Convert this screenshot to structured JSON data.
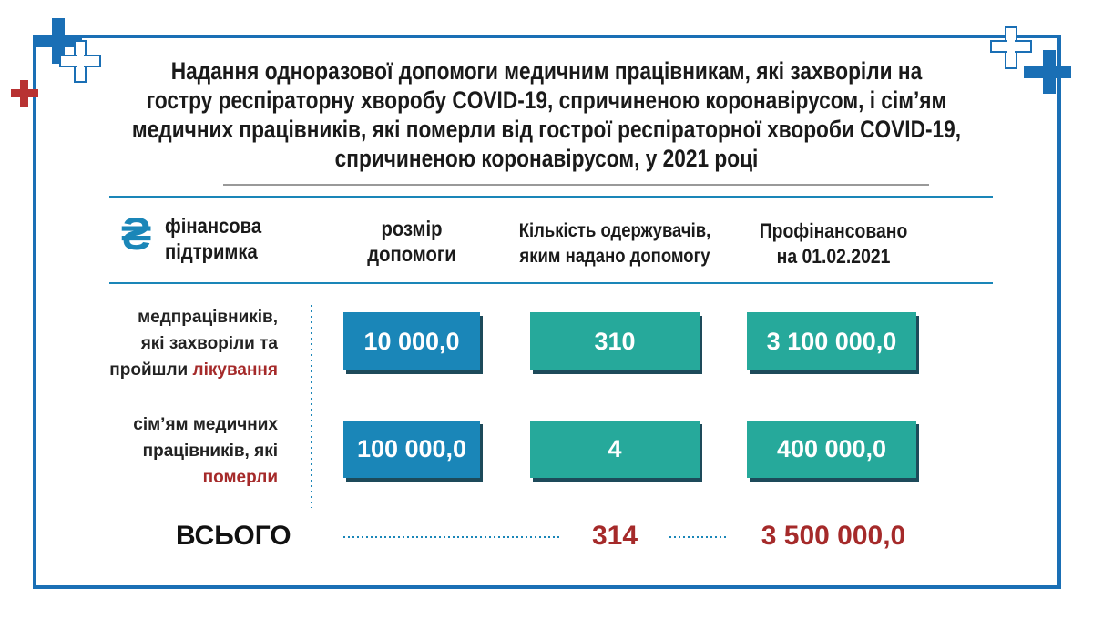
{
  "title_lines": [
    "Надання одноразової допомоги медичним працівникам, які захворіли на",
    "гостру респіраторну хворобу COVID-19, спричиненою коронавірусом, і сім’ям",
    "медичних працівників, які померли від гострої респіраторної хвороби COVID-19,",
    "спричиненою коронавірусом, у 2021 році"
  ],
  "header": {
    "icon": "₴",
    "support_lines": [
      "фінансова",
      "підтримка"
    ],
    "size_lines": [
      "розмір",
      "допомоги"
    ],
    "recipients_lines": [
      "Кількість одержувачів,",
      "яким надано допомогу"
    ],
    "funded_lines": [
      "Профінансовано",
      "на 01.02.2021"
    ]
  },
  "rows": [
    {
      "label_lines": [
        "медпрацівників,",
        "які захворіли та",
        "пройшли"
      ],
      "highlight": "лікування",
      "size": "10 000,0",
      "recipients": "310",
      "funded": "3 100 000,0"
    },
    {
      "label_lines": [
        "сім’ям медичних",
        "працівників, які"
      ],
      "highlight": "померли",
      "size": "100 000,0",
      "recipients": "4",
      "funded": "400 000,0"
    }
  ],
  "total": {
    "label": "ВСЬОГО",
    "recipients": "314",
    "funded": "3 500 000,0"
  }
}
